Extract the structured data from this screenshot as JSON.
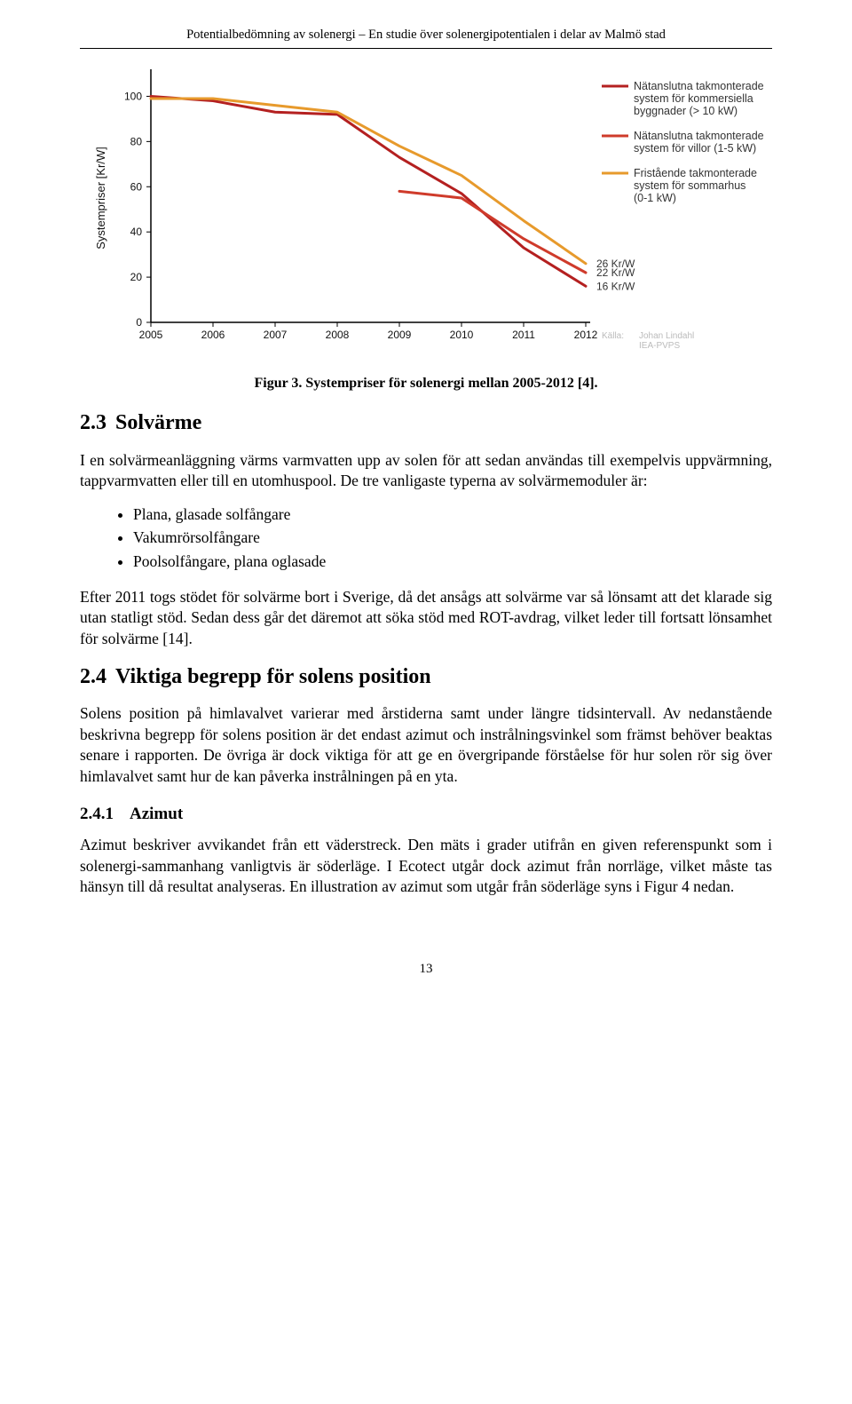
{
  "header": "Potentialbedömning av solenergi – En studie över solenergipotentialen i delar av Malmö stad",
  "chart": {
    "type": "line",
    "y_axis_label": "Systempriser [Kr/W]",
    "x_ticks": [
      "2005",
      "2006",
      "2007",
      "2008",
      "2009",
      "2010",
      "2011",
      "2012"
    ],
    "y_ticks": [
      0,
      20,
      40,
      60,
      80,
      100
    ],
    "ylim": [
      0,
      110
    ],
    "background_color": "#ffffff",
    "axis_color": "#000000",
    "line_width": 3,
    "series": [
      {
        "id": "kommersiella",
        "label_lines": [
          "Nätanslutna takmonterade",
          "system för kommersiella",
          "byggnader (> 10 kW)"
        ],
        "color": "#b42020",
        "end_label": "16 Kr/W",
        "points": [
          [
            2005,
            100
          ],
          [
            2006,
            98
          ],
          [
            2007,
            93
          ],
          [
            2008,
            92
          ],
          [
            2009,
            73
          ],
          [
            2010,
            57
          ],
          [
            2011,
            33
          ],
          [
            2012,
            16
          ]
        ]
      },
      {
        "id": "villor",
        "label_lines": [
          "Nätanslutna takmonterade",
          "system för villor (1-5 kW)"
        ],
        "color": "#cf3b2b",
        "end_label": "22 Kr/W",
        "points": [
          [
            2009,
            58
          ],
          [
            2010,
            55
          ],
          [
            2011,
            37
          ],
          [
            2012,
            22
          ]
        ]
      },
      {
        "id": "sommarhus",
        "label_lines": [
          "Fristående takmonterade",
          "system för sommarhus",
          "(0-1 kW)"
        ],
        "color": "#e79a2c",
        "end_label": "26 Kr/W",
        "points": [
          [
            2005,
            99
          ],
          [
            2006,
            99
          ],
          [
            2007,
            96
          ],
          [
            2008,
            93
          ],
          [
            2009,
            78
          ],
          [
            2010,
            65
          ],
          [
            2011,
            45
          ],
          [
            2012,
            26
          ]
        ]
      }
    ],
    "source_label": "Källa:",
    "source_value": "Johan Lindahl\nIEA-PVPS"
  },
  "chart_caption": "Figur 3. Systempriser för solenergi mellan 2005-2012 [4].",
  "section_23_num": "2.3",
  "section_23_title": "Solvärme",
  "para_23_1": "I en solvärmeanläggning värms varmvatten upp av solen för att sedan användas till exempelvis uppvärmning, tappvarmvatten eller till en utomhuspool. De tre vanligaste typerna av solvärmemoduler är:",
  "bullets": [
    "Plana, glasade solfångare",
    "Vakumrörsolfångare",
    "Poolsolfångare, plana oglasade"
  ],
  "para_23_2": "Efter 2011 togs stödet för solvärme bort i Sverige, då det ansågs att solvärme var så lönsamt att det klarade sig utan statligt stöd. Sedan dess går det däremot att söka stöd med ROT-avdrag, vilket leder till fortsatt lönsamhet för solvärme [14].",
  "section_24_num": "2.4",
  "section_24_title": "Viktiga begrepp för solens position",
  "para_24_1": "Solens position på himlavalvet varierar med årstiderna samt under längre tidsintervall. Av nedanstående beskrivna begrepp för solens position är det endast azimut och instrålningsvinkel som främst behöver beaktas senare i rapporten. De övriga är dock viktiga för att ge en övergripande förståelse för hur solen rör sig över himlavalvet samt hur de kan påverka instrålningen på en yta.",
  "section_241_num": "2.4.1",
  "section_241_title": "Azimut",
  "para_241_1": "Azimut beskriver avvikandet från ett väderstreck. Den mäts i grader utifrån en given referenspunkt som i solenergi-sammanhang vanligtvis är söderläge. I Ecotect utgår dock azimut från norrläge, vilket måste tas hänsyn till då resultat analyseras. En illustration av azimut som utgår från söderläge syns i Figur 4 nedan.",
  "page_number": "13"
}
